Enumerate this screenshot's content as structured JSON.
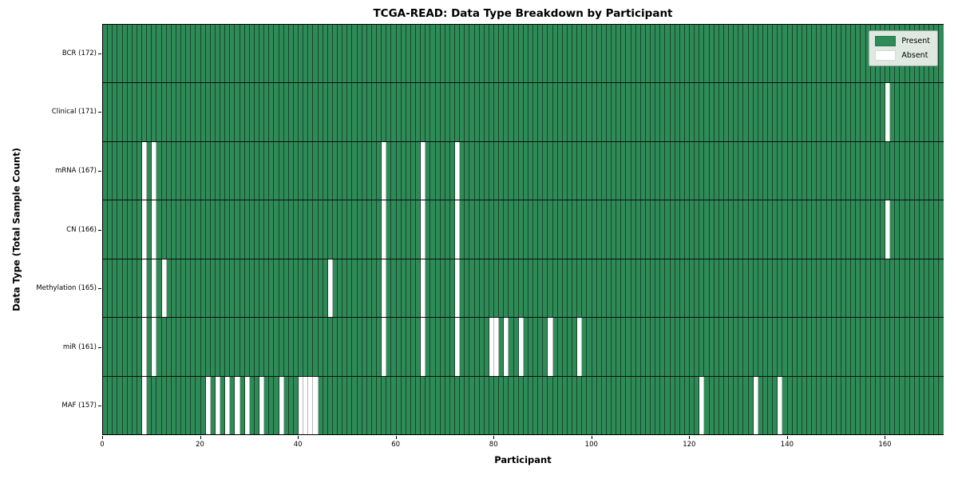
{
  "title": "TCGA-READ: Data Type Breakdown by Participant",
  "xlabel": "Participant",
  "ylabel": "Data Type (Total Sample Count)",
  "legend": [
    {
      "label": "Present",
      "color_key": "present"
    },
    {
      "label": "Absent",
      "color_key": "absent"
    }
  ],
  "colors": {
    "present": "#2e8b57",
    "absent": "#ffffff"
  },
  "chart_data": {
    "type": "heatmap",
    "title": "TCGA-READ: Data Type Breakdown by Participant",
    "xlabel": "Participant",
    "ylabel": "Data Type (Total Sample Count)",
    "n_participants": 172,
    "x_range": [
      0,
      172
    ],
    "x_ticks": [
      0,
      20,
      40,
      60,
      80,
      100,
      120,
      140,
      160
    ],
    "legend_position": "upper right",
    "grid": "cell-borders",
    "value_encoding": {
      "present": 1,
      "absent": 0
    },
    "rows": [
      {
        "label": "BCR (172)",
        "name": "BCR",
        "total_sample_count": 172,
        "absent_participants": []
      },
      {
        "label": "Clinical (171)",
        "name": "Clinical",
        "total_sample_count": 171,
        "absent_participants": [
          160
        ]
      },
      {
        "label": "mRNA (167)",
        "name": "mRNA",
        "total_sample_count": 167,
        "absent_participants": [
          8,
          10,
          57,
          65,
          72
        ]
      },
      {
        "label": "CN (166)",
        "name": "CN",
        "total_sample_count": 166,
        "absent_participants": [
          8,
          10,
          57,
          65,
          72,
          160
        ]
      },
      {
        "label": "Methylation (165)",
        "name": "Methylation",
        "total_sample_count": 165,
        "absent_participants": [
          8,
          10,
          12,
          46,
          57,
          65,
          72
        ]
      },
      {
        "label": "miR (161)",
        "name": "miR",
        "total_sample_count": 161,
        "absent_participants": [
          8,
          10,
          57,
          65,
          72,
          79,
          80,
          82,
          85,
          91,
          97
        ]
      },
      {
        "label": "MAF (157)",
        "name": "MAF",
        "total_sample_count": 157,
        "absent_participants": [
          8,
          21,
          23,
          25,
          27,
          29,
          32,
          36,
          40,
          41,
          42,
          43,
          122,
          133,
          138
        ]
      }
    ]
  }
}
